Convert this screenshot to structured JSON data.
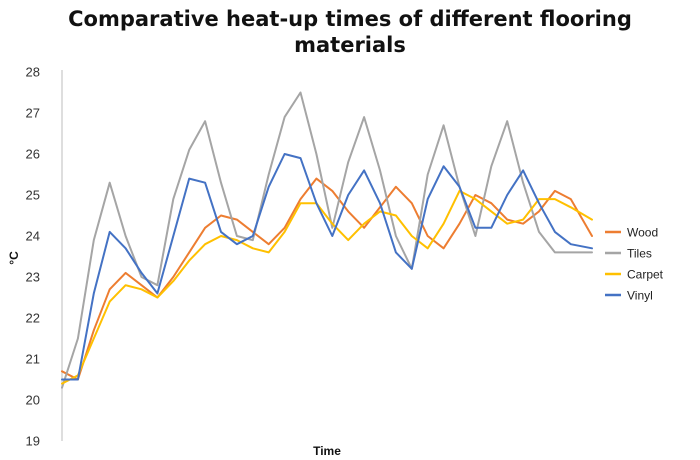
{
  "chart_data": {
    "type": "line",
    "title_lines": [
      "Comparative heat-up times of different flooring",
      "materials"
    ],
    "xlabel": "Time",
    "ylabel": "°C",
    "ylim": [
      19,
      28
    ],
    "yticks": [
      "19",
      "20",
      "21",
      "22",
      "23",
      "24",
      "25",
      "26",
      "27",
      "28"
    ],
    "grid": false,
    "legend_position": "right",
    "x": [
      0,
      3,
      6,
      9,
      12,
      15,
      18,
      21,
      24,
      27,
      30,
      33,
      36,
      39,
      42,
      45,
      48,
      51,
      54,
      57,
      60,
      63,
      66,
      69,
      72,
      75,
      78,
      81,
      84,
      87,
      90,
      93,
      96,
      100
    ],
    "series": [
      {
        "name": "Wood",
        "color": "#ED7D31",
        "values": [
          20.7,
          20.5,
          21.7,
          22.7,
          23.1,
          22.8,
          22.5,
          23.0,
          23.6,
          24.2,
          24.5,
          24.4,
          24.1,
          23.8,
          24.2,
          24.9,
          25.4,
          25.1,
          24.6,
          24.2,
          24.7,
          25.2,
          24.8,
          24.0,
          23.7,
          24.3,
          25.0,
          24.8,
          24.4,
          24.3,
          24.6,
          25.1,
          24.9,
          24.0
        ]
      },
      {
        "name": "Tiles",
        "color": "#A5A5A5",
        "values": [
          20.3,
          21.5,
          23.9,
          25.3,
          24.0,
          23.0,
          22.8,
          24.9,
          26.1,
          26.8,
          25.3,
          24.0,
          23.9,
          25.5,
          26.9,
          27.5,
          26.0,
          24.2,
          25.8,
          26.9,
          25.6,
          24.0,
          23.2,
          25.5,
          26.7,
          25.2,
          24.0,
          25.7,
          26.8,
          25.3,
          24.1,
          23.6,
          23.6,
          23.6
        ]
      },
      {
        "name": "Carpet",
        "color": "#FFC000",
        "values": [
          20.4,
          20.6,
          21.5,
          22.4,
          22.8,
          22.7,
          22.5,
          22.9,
          23.4,
          23.8,
          24.0,
          23.9,
          23.7,
          23.6,
          24.1,
          24.8,
          24.8,
          24.3,
          23.9,
          24.3,
          24.6,
          24.5,
          24.0,
          23.7,
          24.3,
          25.1,
          24.9,
          24.6,
          24.3,
          24.4,
          24.9,
          24.9,
          24.7,
          24.4
        ]
      },
      {
        "name": "Vinyl",
        "color": "#4472C4",
        "values": [
          20.5,
          20.5,
          22.6,
          24.1,
          23.7,
          23.1,
          22.6,
          24.0,
          25.4,
          25.3,
          24.1,
          23.8,
          24.0,
          25.2,
          26.0,
          25.9,
          24.8,
          24.0,
          25.0,
          25.6,
          24.8,
          23.6,
          23.2,
          24.9,
          25.7,
          25.2,
          24.2,
          24.2,
          25.0,
          25.6,
          24.8,
          24.1,
          23.8,
          23.7
        ]
      }
    ]
  }
}
